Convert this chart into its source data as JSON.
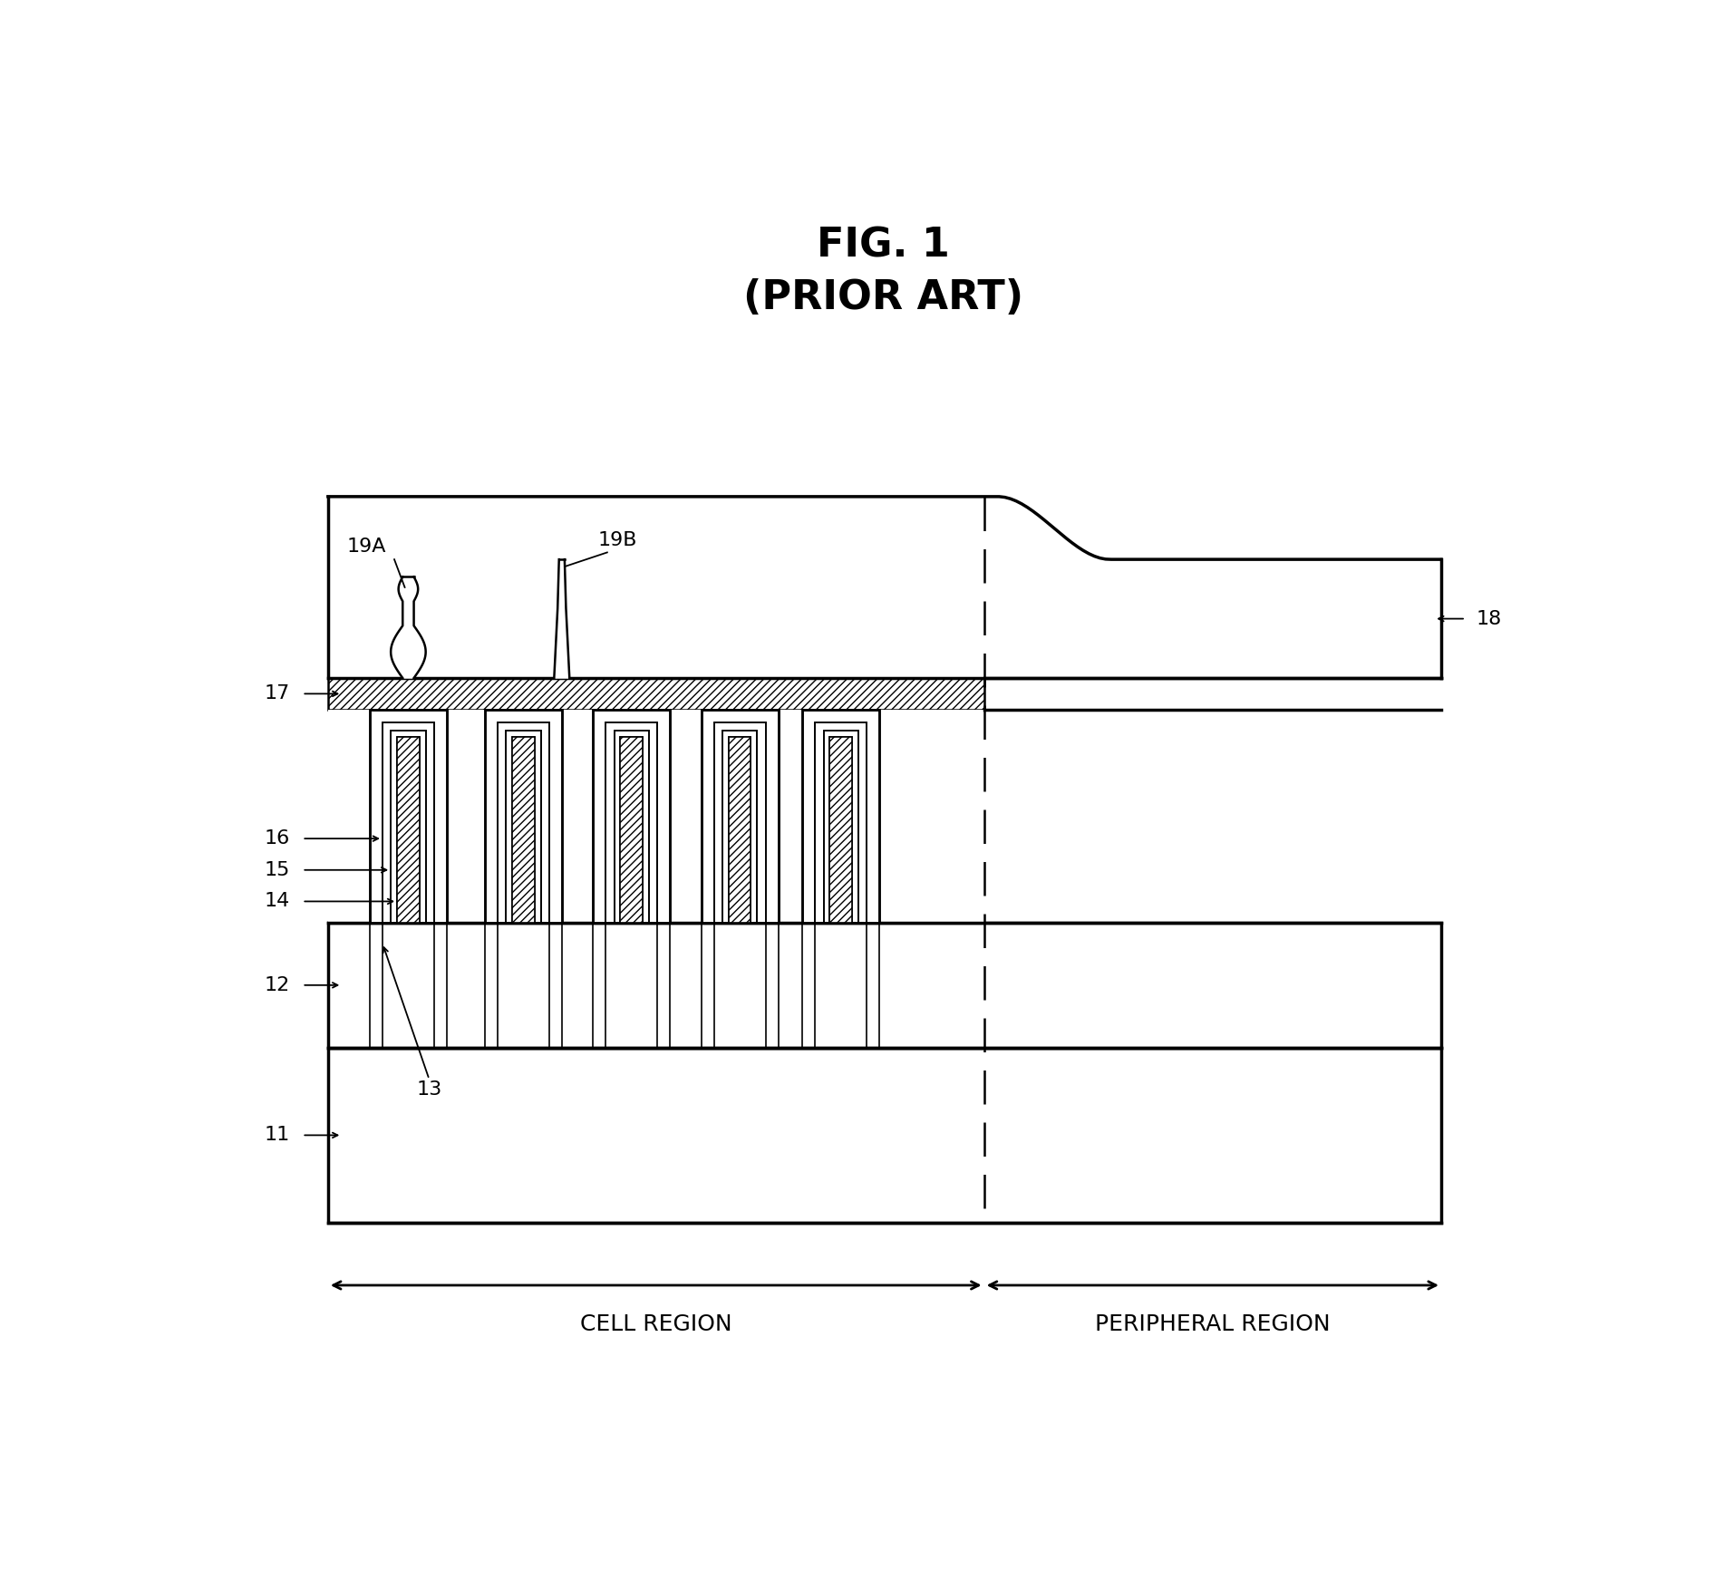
{
  "title_line1": "FIG. 1",
  "title_line2": "(PRIOR ART)",
  "background_color": "#ffffff",
  "line_color": "#000000",
  "fig_width": 19.02,
  "fig_height": 17.42,
  "dpi": 100,
  "region_labels": {
    "cell": "CELL REGION",
    "peripheral": "PERIPHERAL REGION"
  }
}
